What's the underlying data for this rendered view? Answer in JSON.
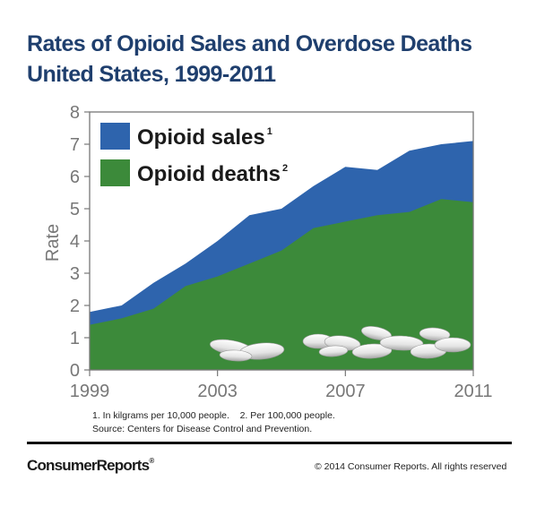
{
  "title_line1": "Rates of Opioid Sales and Overdose Deaths",
  "title_line2": "United States, 1999-2011",
  "footnote_line1": "1. In kilgrams per 10,000 people.    2. Per 100,000 people.",
  "footnote_line2": "Source: Centers for Disease Control and Prevention.",
  "brand": "ConsumerReports",
  "brand_mark": "®",
  "copyright": "© 2014 Consumer Reports. All rights reserved",
  "colors": {
    "sales": "#2e64ad",
    "deaths": "#3c8a3a",
    "title": "#1f3f6e",
    "axis": "#777777"
  },
  "chart_data": {
    "type": "area",
    "title": "",
    "xlabel": "",
    "ylabel": "Rate",
    "xlim": [
      1999,
      2011
    ],
    "ylim": [
      0,
      8
    ],
    "yticks": [
      0,
      1,
      2,
      3,
      4,
      5,
      6,
      7,
      8
    ],
    "xticks": [
      "1999",
      "2003",
      "2007",
      "2011"
    ],
    "x": [
      1999,
      2000,
      2001,
      2002,
      2003,
      2004,
      2005,
      2006,
      2007,
      2008,
      2009,
      2010,
      2011
    ],
    "series": [
      {
        "name": "Opioid sales",
        "superscript": "1",
        "values": [
          1.8,
          2.0,
          2.7,
          3.3,
          4.0,
          4.8,
          5.0,
          5.7,
          6.3,
          6.2,
          6.8,
          7.0,
          7.1
        ]
      },
      {
        "name": "Opioid deaths",
        "superscript": "2",
        "values": [
          1.4,
          1.6,
          1.9,
          2.6,
          2.9,
          3.3,
          3.7,
          4.4,
          4.6,
          4.8,
          4.9,
          5.3,
          5.2
        ]
      }
    ],
    "legend": "top-left"
  }
}
